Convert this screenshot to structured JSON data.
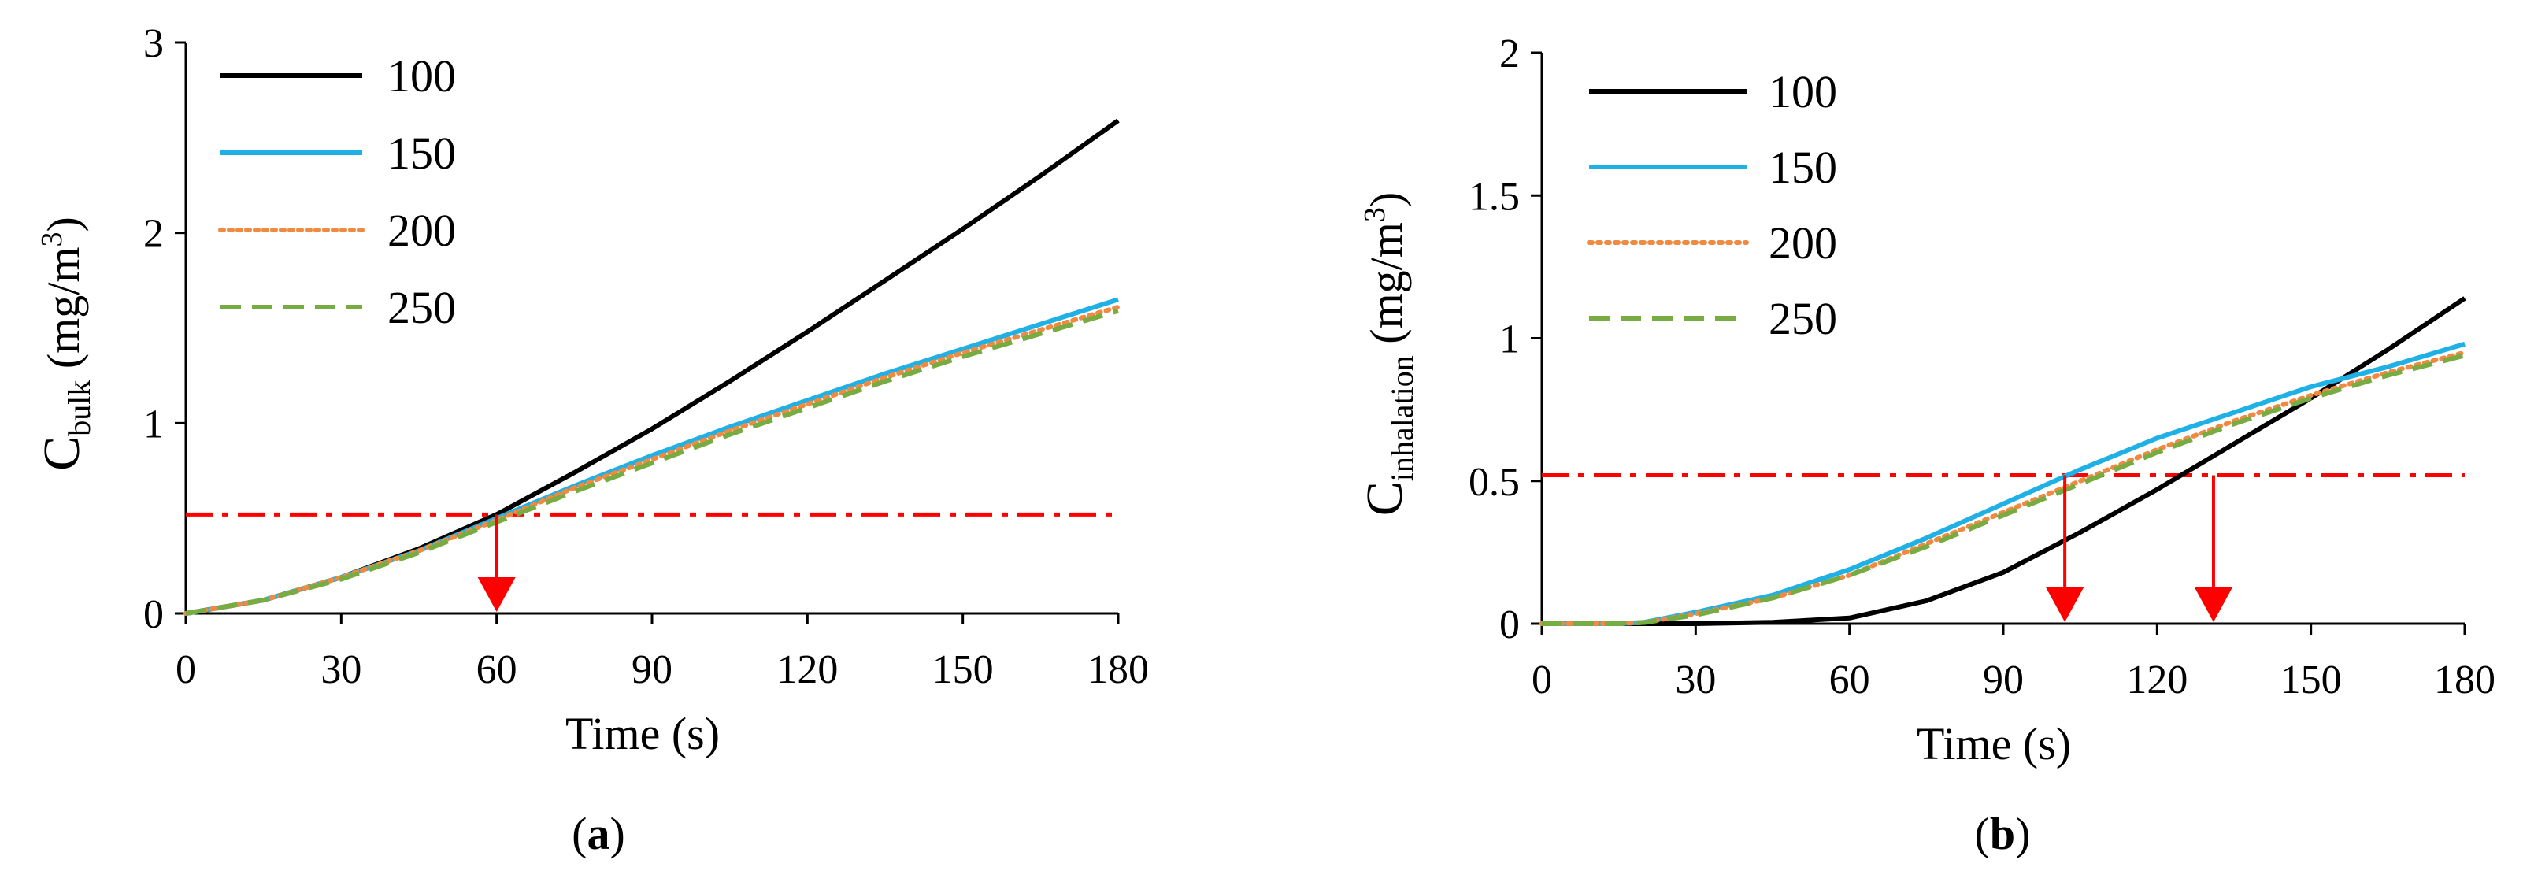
{
  "chart_data": [
    {
      "id": "a",
      "type": "line",
      "panel_label": {
        "open": "(",
        "letter": "a",
        "close": ")"
      },
      "xlabel": "Time (s)",
      "ylabel": {
        "main": "C",
        "sub": "bulk",
        "unit_pre": " (mg/m",
        "sup": "3",
        "unit_post": ")"
      },
      "xlim": [
        0,
        180
      ],
      "ylim": [
        0,
        3
      ],
      "xticks": [
        0,
        30,
        60,
        90,
        120,
        150,
        180
      ],
      "yticks": [
        0,
        1,
        2,
        3
      ],
      "xtick_labels": [
        "0",
        "30",
        "60",
        "90",
        "120",
        "150",
        "180"
      ],
      "ytick_labels": [
        "0",
        "1",
        "2",
        "3"
      ],
      "threshold": 0.52,
      "arrows": [
        60
      ],
      "legend": [
        "100",
        "150",
        "200",
        "250"
      ],
      "series": [
        {
          "name": "100",
          "color": "#000000",
          "dash": "solid",
          "x": [
            0,
            15,
            30,
            45,
            60,
            75,
            90,
            105,
            120,
            135,
            150,
            165,
            180
          ],
          "y": [
            0,
            0.07,
            0.19,
            0.34,
            0.52,
            0.74,
            0.97,
            1.22,
            1.48,
            1.75,
            2.02,
            2.3,
            2.59
          ]
        },
        {
          "name": "150",
          "color": "#1fb1e6",
          "dash": "solid",
          "x": [
            0,
            15,
            30,
            45,
            60,
            75,
            90,
            105,
            120,
            135,
            150,
            165,
            180
          ],
          "y": [
            0,
            0.07,
            0.19,
            0.33,
            0.5,
            0.67,
            0.83,
            0.98,
            1.12,
            1.26,
            1.39,
            1.52,
            1.65
          ]
        },
        {
          "name": "200",
          "color": "#f08a40",
          "dash": "dotted",
          "x": [
            0,
            15,
            30,
            45,
            60,
            75,
            90,
            105,
            120,
            135,
            150,
            165,
            180
          ],
          "y": [
            0,
            0.07,
            0.19,
            0.33,
            0.49,
            0.66,
            0.81,
            0.96,
            1.1,
            1.24,
            1.37,
            1.49,
            1.61
          ]
        },
        {
          "name": "250",
          "color": "#77ac43",
          "dash": "dashed",
          "x": [
            0,
            15,
            30,
            45,
            60,
            75,
            90,
            105,
            120,
            135,
            150,
            165,
            180
          ],
          "y": [
            0,
            0.07,
            0.18,
            0.32,
            0.48,
            0.64,
            0.79,
            0.94,
            1.08,
            1.22,
            1.35,
            1.47,
            1.59
          ]
        }
      ]
    },
    {
      "id": "b",
      "type": "line",
      "panel_label": {
        "open": "(",
        "letter": "b",
        "close": ")"
      },
      "xlabel": "Time (s)",
      "ylabel": {
        "main": "C",
        "sub": "inhalation",
        "unit_pre": " (mg/m",
        "sup": "3",
        "unit_post": ")"
      },
      "xlim": [
        0,
        180
      ],
      "ylim": [
        0,
        2
      ],
      "xticks": [
        0,
        30,
        60,
        90,
        120,
        150,
        180
      ],
      "yticks": [
        0,
        0.5,
        1,
        1.5,
        2
      ],
      "xtick_labels": [
        "0",
        "30",
        "60",
        "90",
        "120",
        "150",
        "180"
      ],
      "ytick_labels": [
        "0",
        "0.5",
        "1",
        "1.5",
        "2"
      ],
      "threshold": 0.52,
      "arrows": [
        102,
        131
      ],
      "legend": [
        "100",
        "150",
        "200",
        "250"
      ],
      "series": [
        {
          "name": "100",
          "color": "#000000",
          "dash": "solid",
          "x": [
            0,
            15,
            30,
            45,
            60,
            75,
            90,
            105,
            120,
            135,
            150,
            165,
            180
          ],
          "y": [
            0,
            0,
            0,
            0.005,
            0.02,
            0.08,
            0.18,
            0.32,
            0.47,
            0.63,
            0.79,
            0.96,
            1.14
          ]
        },
        {
          "name": "150",
          "color": "#1fb1e6",
          "dash": "solid",
          "x": [
            0,
            15,
            20,
            30,
            45,
            60,
            75,
            90,
            105,
            120,
            135,
            150,
            165,
            180
          ],
          "y": [
            0,
            0,
            0.005,
            0.04,
            0.1,
            0.19,
            0.3,
            0.42,
            0.54,
            0.65,
            0.74,
            0.83,
            0.9,
            0.98
          ]
        },
        {
          "name": "200",
          "color": "#f08a40",
          "dash": "dotted",
          "x": [
            0,
            15,
            20,
            30,
            45,
            60,
            75,
            90,
            105,
            120,
            135,
            150,
            165,
            180
          ],
          "y": [
            0,
            0,
            0.004,
            0.035,
            0.09,
            0.17,
            0.28,
            0.39,
            0.5,
            0.61,
            0.71,
            0.8,
            0.88,
            0.95
          ]
        },
        {
          "name": "250",
          "color": "#77ac43",
          "dash": "dashed",
          "x": [
            0,
            15,
            20,
            30,
            45,
            60,
            75,
            90,
            105,
            120,
            135,
            150,
            165,
            180
          ],
          "y": [
            0,
            0,
            0.004,
            0.03,
            0.09,
            0.17,
            0.27,
            0.38,
            0.49,
            0.6,
            0.7,
            0.79,
            0.87,
            0.94
          ]
        }
      ]
    }
  ]
}
